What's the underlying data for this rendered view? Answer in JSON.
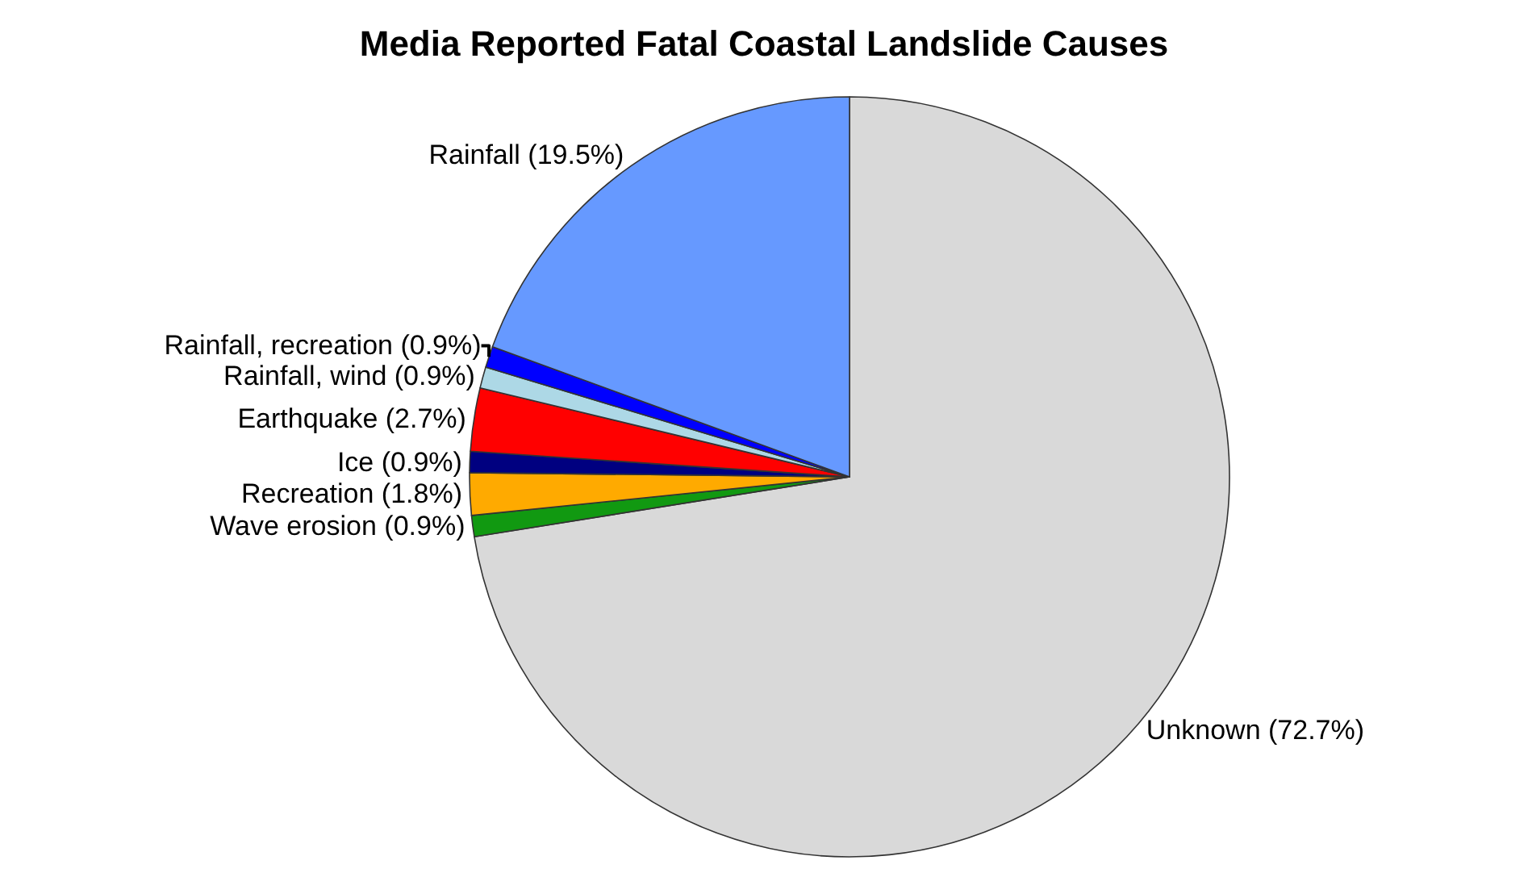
{
  "chart_data": {
    "type": "pie",
    "title": "Media Reported Fatal Coastal Landslide Causes",
    "categories": [
      "Unknown (72.7%)",
      "Wave erosion (0.9%)",
      "Recreation (1.8%)",
      "Ice (0.9%)",
      "Earthquake (2.7%)",
      "Rainfall, wind (0.9%)",
      "Rainfall, recreation (0.9%)",
      "Rainfall (19.5%)"
    ],
    "values": [
      72.7,
      0.9,
      1.8,
      0.9,
      2.7,
      0.9,
      0.9,
      19.5
    ],
    "colors": [
      "#d9d9d9",
      "#119911",
      "#ffaa00",
      "#000080",
      "#ff0000",
      "#add8e6",
      "#0000ff",
      "#6699ff"
    ],
    "legend": false
  }
}
